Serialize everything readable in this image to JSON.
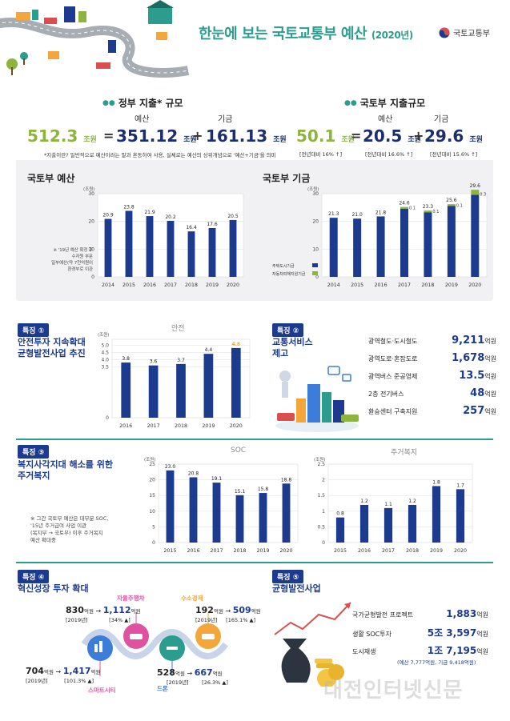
{
  "header": {
    "title": "한눈에 보는 국토교통부 예산",
    "year": "(2020년)",
    "ministry": "국토교통부"
  },
  "summary": {
    "gov": {
      "heading": "정부 지출* 규모",
      "total": "512.3",
      "budget_label": "예산",
      "budget": "351.12",
      "fund_label": "기금",
      "fund": "161.13",
      "unit": "조원",
      "note": "*지출이란? 일반적으로 예산이라는 말과 혼동하여 사용, 실체로는 예산의 상위개념으로 '예산+기금'을 의미"
    },
    "molit": {
      "heading": "국토부 지출규모",
      "total": "50.1",
      "budget_label": "예산",
      "budget": "20.5",
      "fund_label": "기금",
      "fund": "29.6",
      "unit": "조원",
      "total_change": "[전년대비 16% ↑]",
      "budget_change": "[전년대비 16.6% ↑]",
      "fund_change": "[전년대비 15.6% ↑]"
    }
  },
  "chart_data": [
    {
      "id": "molit-budget",
      "type": "bar",
      "title": "국토부 예산",
      "ylabel": "(조원)",
      "categories": [
        "2014",
        "2015",
        "2016",
        "2017",
        "2018",
        "2019",
        "2020"
      ],
      "values": [
        20.9,
        23.8,
        21.9,
        20.2,
        16.4,
        17.6,
        20.5
      ],
      "ylim": [
        0,
        30
      ],
      "yticks": [
        0,
        10,
        20,
        30
      ],
      "annotation": "※ '19년 예산 확정 후 수자원 부문 일부예산(약 7천억원이 환경부로 이관"
    },
    {
      "id": "molit-fund",
      "type": "bar",
      "title": "국토부 기금",
      "ylabel": "(조원)",
      "categories": [
        "2014",
        "2015",
        "2016",
        "2017",
        "2018",
        "2019",
        "2020"
      ],
      "series": [
        {
          "name": "주택도시기금",
          "values": [
            21.3,
            21.0,
            21.8,
            24.6,
            23.3,
            25.6,
            29.6
          ]
        },
        {
          "name": "자동차피해지원기금",
          "values": [
            0,
            0,
            0,
            0.1,
            0.1,
            0.1,
            0.3
          ]
        }
      ],
      "ylim": [
        0,
        30
      ],
      "yticks": [
        0,
        10,
        20,
        30
      ],
      "colors": [
        "#1c3b8f",
        "#8db43e"
      ]
    },
    {
      "id": "safety",
      "type": "bar",
      "title": "안전",
      "ylabel": "(조원)",
      "categories": [
        "2016",
        "2017",
        "2018",
        "2019",
        "2020"
      ],
      "values": [
        3.8,
        3.6,
        3.7,
        4.4,
        4.8
      ],
      "yticks": [
        0,
        3.5,
        4.0,
        4.5,
        5.0
      ]
    },
    {
      "id": "soc",
      "type": "bar",
      "title": "SOC",
      "ylabel": "(조원)",
      "categories": [
        "2015",
        "2016",
        "2017",
        "2018",
        "2019",
        "2020"
      ],
      "values": [
        23.0,
        20.8,
        19.1,
        15.1,
        15.8,
        18.8
      ],
      "ylim": [
        0,
        25
      ],
      "yticks": [
        0,
        5,
        10,
        15,
        20,
        25
      ]
    },
    {
      "id": "housing",
      "type": "bar",
      "title": "주거복지",
      "ylabel": "(조원)",
      "categories": [
        "2015",
        "2016",
        "2017",
        "2018",
        "2019",
        "2020"
      ],
      "values": [
        0.8,
        1.2,
        1.1,
        1.2,
        1.8,
        1.7
      ],
      "ylim": [
        0,
        2.5
      ],
      "yticks": [
        0,
        0.5,
        1,
        1.5,
        2,
        2.5
      ]
    }
  ],
  "features": {
    "f1": {
      "tag": "특징 ①",
      "title1": "안전투자 지속확대",
      "title2": "균형발전사업 추진"
    },
    "f2": {
      "tag": "특징 ②",
      "title1": "교통서비스",
      "title2": "제고",
      "items": [
        {
          "label": "광역철도·도시철도",
          "value": "9,211",
          "unit": "억원"
        },
        {
          "label": "광역도로·혼잡도로",
          "value": "1,678",
          "unit": "억원"
        },
        {
          "label": "광역버스 준공영제",
          "value": "13.5",
          "unit": "억원"
        },
        {
          "label": "2층 전기버스",
          "value": "48",
          "unit": "억원"
        },
        {
          "label": "환승센터 구축지원",
          "value": "257",
          "unit": "억원"
        }
      ]
    },
    "f3": {
      "tag": "특징 ③",
      "title1": "복지사각지대 해소를 위한",
      "title2": "주거복지",
      "note1": "※ 그간 국토부 예산은 대부분 SOC,",
      "note2": "'15년 주거급여 사업 이관",
      "note3": "(복지부 → 국토부) 이후 주거복지",
      "note4": "예산 확대중"
    },
    "f4": {
      "tag": "특징 ④",
      "title": "혁신성장 투자 확대",
      "items": [
        {
          "name": "자율주행차",
          "from": "830",
          "to": "1,112",
          "unit": "억원",
          "year": "[2019년]",
          "pct": "[34% ▲]"
        },
        {
          "name": "수소경제",
          "from": "192",
          "to": "509",
          "unit": "억원",
          "year": "[2019년]",
          "pct": "[165.1% ▲]"
        },
        {
          "name": "스마트시티",
          "from": "704",
          "to": "1,417",
          "unit": "억원",
          "year": "[2019년]",
          "pct": "[101.3% ▲]"
        },
        {
          "name": "드론",
          "from": "528",
          "to": "667",
          "unit": "억원",
          "year": "[2019년]",
          "pct": "[26.3% ▲]"
        }
      ]
    },
    "f5": {
      "tag": "특징 ⑤",
      "title": "균형발전사업",
      "items": [
        {
          "label": "국가균형발전 프로젝트",
          "value": "1,883",
          "unit": "억원"
        },
        {
          "label": "생활 SOC투자",
          "value": "5조 3,597",
          "unit": "억원"
        },
        {
          "label": "도시재생",
          "value": "1조 7,195",
          "unit": "억원"
        }
      ],
      "note": "(예산 7,777억원, 기금 9,418억원)"
    }
  },
  "watermark": "대전인터넷신문"
}
